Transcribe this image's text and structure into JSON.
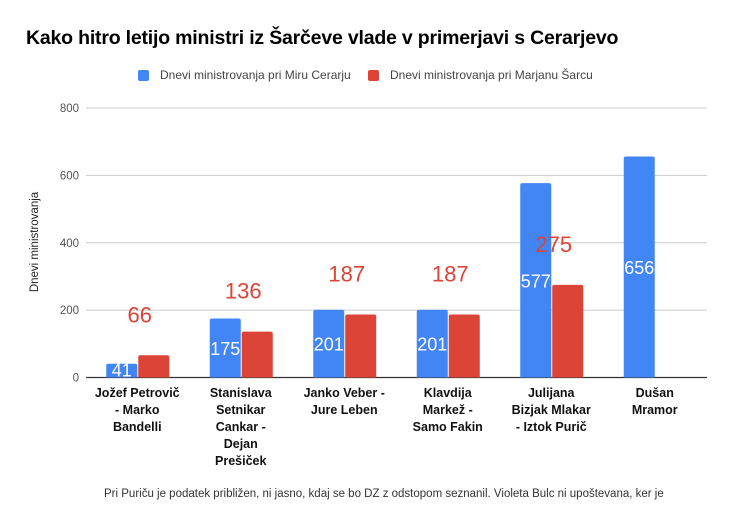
{
  "chart_data": {
    "type": "bar",
    "title": "Kako hitro letijo ministri iz Šarčeve vlade v primerjavi s Cerarjevo",
    "xlabel": "",
    "ylabel": "Dnevi ministrovanja",
    "ylim": [
      0,
      800
    ],
    "yticks": [
      0,
      200,
      400,
      600,
      800
    ],
    "grid": true,
    "legend_position": "top-center",
    "categories": [
      [
        "Jožef Petrovič",
        "- Marko",
        "Bandelli"
      ],
      [
        "Stanislava",
        "Setnikar",
        "Cankar -",
        "Dejan",
        "Prešiček"
      ],
      [
        "Janko Veber -",
        "Jure Leben"
      ],
      [
        "Klavdija",
        "Markež -",
        "Samo Fakin"
      ],
      [
        "Julijana",
        "Bizjak Mlakar",
        "- Iztok Purič"
      ],
      [
        "Dušan",
        "Mramor"
      ]
    ],
    "series": [
      {
        "name": "Dnevi ministrovanja pri Miru Cerarju",
        "color": "#4285f4",
        "values": [
          41,
          175,
          201,
          201,
          577,
          656
        ]
      },
      {
        "name": "Dnevi ministrovanja pri Marjanu Šarcu",
        "color": "#db4437",
        "values": [
          66,
          136,
          187,
          187,
          275,
          null
        ]
      }
    ],
    "footnote": "Pri Puriču je podatek približen,  ni jasno, kdaj se bo DZ z odstopom seznanil. Violeta Bulc ni upoštevana, ker je"
  }
}
